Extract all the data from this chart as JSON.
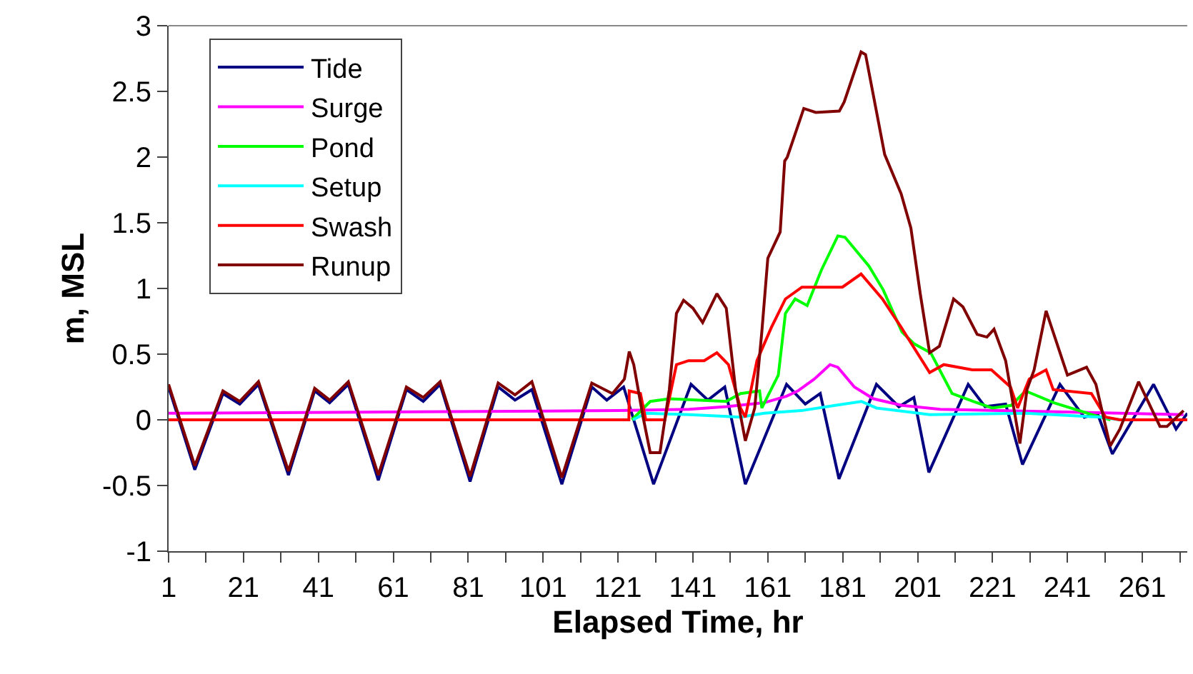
{
  "chart_data": {
    "type": "line",
    "xlabel": "Elapsed Time, hr",
    "ylabel": "m, MSL",
    "xlim": [
      1,
      273
    ],
    "ylim": [
      -1,
      3
    ],
    "xticks": [
      1,
      {
        "value": 11,
        "label": null
      },
      21,
      {
        "value": 31,
        "label": null
      },
      41,
      {
        "value": 51,
        "label": null
      },
      61,
      {
        "value": 71,
        "label": null
      },
      81,
      {
        "value": 91,
        "label": null
      },
      101,
      {
        "value": 111,
        "label": null
      },
      121,
      {
        "value": 131,
        "label": null
      },
      141,
      {
        "value": 151,
        "label": null
      },
      161,
      {
        "value": 171,
        "label": null
      },
      181,
      {
        "value": 191,
        "label": null
      },
      201,
      {
        "value": 211,
        "label": null
      },
      221,
      {
        "value": 231,
        "label": null
      },
      241,
      {
        "value": 251,
        "label": null
      },
      261,
      {
        "value": 271,
        "label": null
      }
    ],
    "yticks": [
      -1,
      -0.5,
      0,
      0.5,
      1,
      1.5,
      2,
      2.5,
      3
    ],
    "legend": "top left",
    "marker": "none",
    "line_style": "solid",
    "series": [
      {
        "name": "Tide",
        "color": "#000080",
        "x": [
          1,
          8,
          15.5,
          20,
          25,
          33,
          40,
          44,
          49,
          57,
          64.5,
          69,
          73.5,
          81.5,
          89,
          93.5,
          98,
          106,
          114,
          118,
          122.5,
          130.5,
          140.5,
          145,
          149.5,
          155,
          166,
          171,
          175,
          180,
          190,
          196,
          200,
          204,
          214.5,
          219,
          224.5,
          229,
          239,
          245.5,
          249,
          253,
          264,
          270,
          273
        ],
        "values": [
          0.25,
          -0.38,
          0.2,
          0.12,
          0.27,
          -0.42,
          0.22,
          0.13,
          0.27,
          -0.46,
          0.23,
          0.14,
          0.27,
          -0.47,
          0.25,
          0.15,
          0.23,
          -0.49,
          0.25,
          0.15,
          0.25,
          -0.49,
          0.27,
          0.15,
          0.25,
          -0.49,
          0.27,
          0.12,
          0.2,
          -0.45,
          0.27,
          0.1,
          0.17,
          -0.4,
          0.27,
          0.1,
          0.12,
          -0.34,
          0.27,
          0.02,
          0.05,
          -0.26,
          0.27,
          -0.07,
          0.05
        ]
      },
      {
        "name": "Surge",
        "color": "#ff00ff",
        "x": [
          1,
          60,
          121,
          140,
          150,
          160,
          166,
          169,
          173.4,
          177.6,
          179.7,
          184.1,
          189.2,
          196.8,
          207,
          272
        ],
        "values": [
          0.05,
          0.06,
          0.07,
          0.08,
          0.1,
          0.13,
          0.18,
          0.22,
          0.31,
          0.42,
          0.4,
          0.25,
          0.16,
          0.11,
          0.08,
          0.04
        ]
      },
      {
        "name": "Pond",
        "color": "#00ff00",
        "x": [
          124.7,
          129.6,
          134.7,
          149.9,
          153.7,
          158.8,
          159.4,
          163.8,
          165.7,
          168.3,
          171.5,
          175.3,
          179.7,
          181.6,
          188,
          191.8,
          196.8,
          200,
          204.5,
          210.2,
          215.8,
          220.9,
          226,
          229.8,
          237.4,
          247.5,
          252.5
        ],
        "values": [
          0,
          0.14,
          0.16,
          0.14,
          0.2,
          0.22,
          0.09,
          0.34,
          0.81,
          0.92,
          0.87,
          1.14,
          1.4,
          1.39,
          1.17,
          0.99,
          0.67,
          0.58,
          0.51,
          0.2,
          0.14,
          0.09,
          0.11,
          0.22,
          0.13,
          0.04,
          0
        ]
      },
      {
        "name": "Setup",
        "color": "#00ffff",
        "x": [
          125,
          128.4,
          140,
          153.7,
          160,
          170,
          179,
          186,
          190,
          204.2,
          229.8,
          250,
          255,
          273
        ],
        "values": [
          0,
          0.05,
          0.04,
          0.02,
          0.05,
          0.07,
          0.11,
          0.14,
          0.09,
          0.04,
          0.05,
          0.02,
          0,
          0
        ]
      },
      {
        "name": "Swash",
        "color": "#ff0000",
        "x": [
          1,
          123.9,
          124,
          127,
          128.4,
          133.5,
          136.6,
          139.8,
          144,
          147.4,
          150.5,
          153.7,
          155,
          158.1,
          161.9,
          165.7,
          170.1,
          180.9,
          185.9,
          191.6,
          196.7,
          204.2,
          208,
          215.6,
          220.7,
          225.8,
          227.7,
          230.8,
          235.3,
          237.2,
          247.4,
          251.2,
          255,
          273
        ],
        "values": [
          0,
          0,
          0.22,
          0.2,
          0,
          0,
          0.42,
          0.45,
          0.45,
          0.51,
          0.42,
          0.09,
          0.02,
          0.45,
          0.7,
          0.92,
          1.01,
          1.01,
          1.11,
          0.92,
          0.7,
          0.36,
          0.42,
          0.38,
          0.38,
          0.25,
          0.09,
          0.31,
          0.38,
          0.23,
          0.2,
          0.02,
          0,
          0
        ]
      },
      {
        "name": "Runup",
        "color": "#800000",
        "x": [
          1,
          8,
          15.5,
          20,
          25,
          33,
          40,
          44,
          49,
          57,
          64.5,
          69,
          73.5,
          81.5,
          89,
          93.5,
          98,
          106,
          114,
          119.5,
          122.7,
          124,
          125.2,
          127.7,
          129.6,
          132.2,
          134.7,
          136.6,
          138.5,
          141,
          143.6,
          145.5,
          147.4,
          149.9,
          152.4,
          155,
          157.5,
          159.4,
          161,
          164.3,
          165.5,
          166.2,
          170.6,
          173.8,
          180.1,
          181.4,
          185.9,
          187.1,
          192.2,
          196.6,
          199.2,
          201.7,
          204.2,
          206.8,
          210.6,
          213.1,
          216.9,
          219.5,
          221.4,
          224.5,
          228.3,
          230.2,
          232.1,
          235.3,
          241,
          246.1,
          248.6,
          252.4,
          255,
          260,
          265.7,
          267.6,
          272
        ],
        "values": [
          0.27,
          -0.35,
          0.22,
          0.14,
          0.29,
          -0.39,
          0.24,
          0.15,
          0.29,
          -0.42,
          0.25,
          0.17,
          0.29,
          -0.43,
          0.28,
          0.19,
          0.29,
          -0.44,
          0.28,
          0.2,
          0.31,
          0.52,
          0.42,
          0.02,
          -0.25,
          -0.25,
          0.23,
          0.81,
          0.91,
          0.85,
          0.74,
          0.85,
          0.96,
          0.85,
          0.23,
          -0.16,
          0.09,
          0.67,
          1.23,
          1.43,
          1.97,
          2.0,
          2.37,
          2.34,
          2.35,
          2.42,
          2.8,
          2.78,
          2.02,
          1.72,
          1.46,
          0.96,
          0.51,
          0.56,
          0.92,
          0.86,
          0.65,
          0.63,
          0.69,
          0.45,
          -0.18,
          0.23,
          0.38,
          0.83,
          0.34,
          0.4,
          0.27,
          -0.2,
          -0.07,
          0.29,
          -0.05,
          -0.05,
          0.07
        ]
      }
    ]
  }
}
